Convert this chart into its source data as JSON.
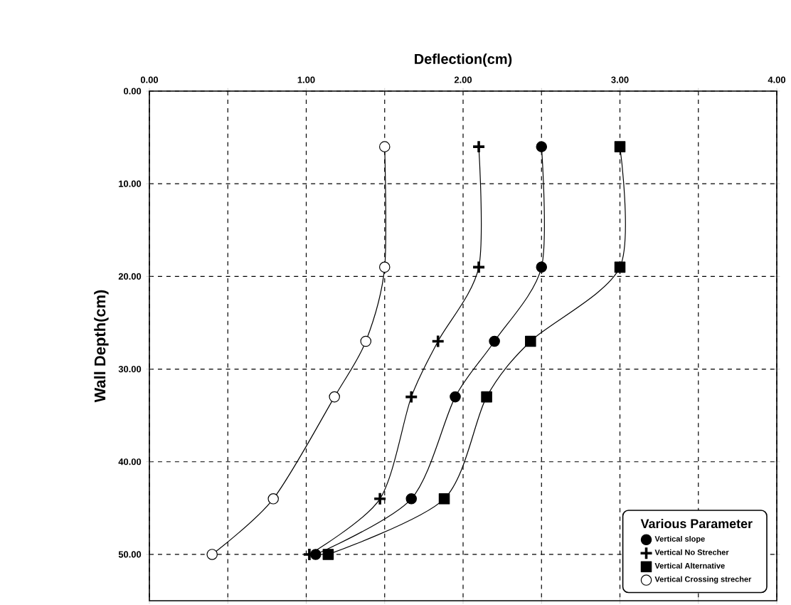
{
  "chart_data": {
    "type": "line",
    "xlabel": "Deflection(cm)",
    "ylabel": "Wall Depth(cm)",
    "legend_title": "Various Parameter",
    "legend": "bottom right",
    "grid": true,
    "line_style": "solid",
    "xlim": [
      0,
      4
    ],
    "ylim": [
      55,
      0
    ],
    "xticks": [
      {
        "value": 0,
        "label": "0.00"
      },
      {
        "value": 0.5,
        "label": null
      },
      {
        "value": 1,
        "label": "1.00"
      },
      {
        "value": 1.5,
        "label": null
      },
      {
        "value": 2,
        "label": "2.00"
      },
      {
        "value": 2.5,
        "label": null
      },
      {
        "value": 3,
        "label": "3.00"
      },
      {
        "value": 3.5,
        "label": null
      },
      {
        "value": 4,
        "label": "4.00"
      }
    ],
    "yticks": [
      {
        "value": 0,
        "label": "0.00"
      },
      {
        "value": 10,
        "label": "10.00"
      },
      {
        "value": 20,
        "label": "20.00"
      },
      {
        "value": 30,
        "label": "30.00"
      },
      {
        "value": 40,
        "label": "40.00"
      },
      {
        "value": 50,
        "label": "50.00"
      }
    ],
    "series": [
      {
        "name": "Vertical slope",
        "color": "#000000",
        "marker": "circle",
        "x": [
          2.5,
          2.5,
          2.2,
          1.95,
          1.67,
          1.06
        ],
        "values": [
          6,
          19,
          27,
          33,
          44,
          50
        ]
      },
      {
        "name": "Vertical No Strecher",
        "color": "#000000",
        "marker": "cross",
        "x": [
          2.1,
          2.1,
          1.84,
          1.67,
          1.47,
          1.02
        ],
        "values": [
          6,
          19,
          27,
          33,
          44,
          50
        ]
      },
      {
        "name": "Vertical Alternative",
        "color": "#000000",
        "marker": "square",
        "x": [
          3.0,
          3.0,
          2.43,
          2.15,
          1.88,
          1.14
        ],
        "values": [
          6,
          19,
          27,
          33,
          44,
          50
        ]
      },
      {
        "name": "Vertical Crossing strecher",
        "color": "#000000",
        "marker": "circle-open",
        "x": [
          1.5,
          1.5,
          1.38,
          1.18,
          0.79,
          0.4
        ],
        "values": [
          6,
          19,
          27,
          33,
          44,
          50
        ]
      }
    ]
  }
}
